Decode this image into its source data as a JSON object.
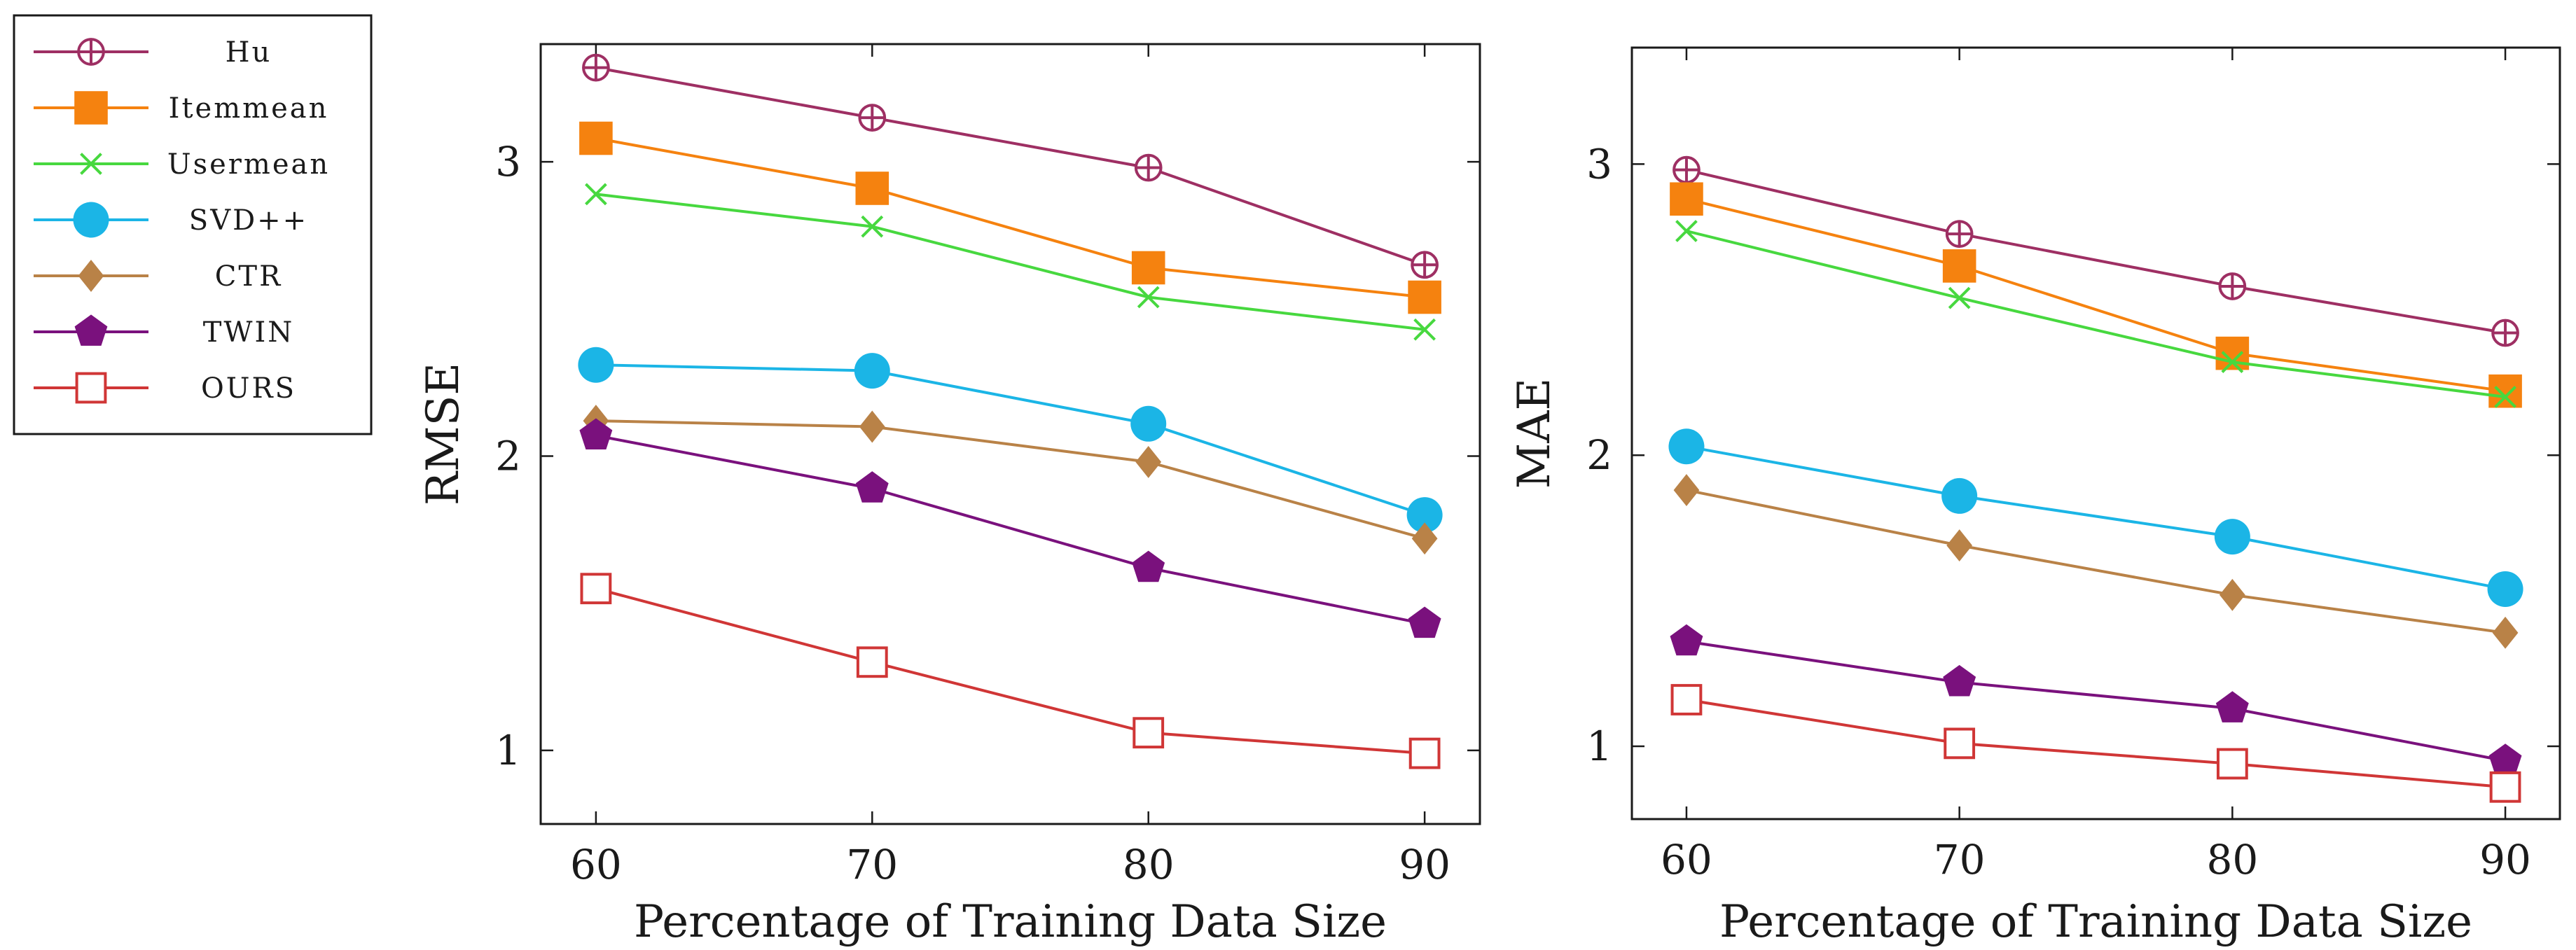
{
  "legend": [
    {
      "name": "Hu",
      "color": "#9e2f63",
      "marker": "circle-plus"
    },
    {
      "name": "Itemmean",
      "color": "#f5820f",
      "marker": "square-filled"
    },
    {
      "name": "Usermean",
      "color": "#47d83f",
      "marker": "cross"
    },
    {
      "name": "SVD++",
      "color": "#1bb5e6",
      "marker": "circle-filled"
    },
    {
      "name": "CTR",
      "color": "#b98247",
      "marker": "diamond"
    },
    {
      "name": "TWIN",
      "color": "#7a117d",
      "marker": "pentagon"
    },
    {
      "name": "OURS",
      "color": "#d03636",
      "marker": "square-open"
    }
  ],
  "chart_data": [
    {
      "type": "line",
      "xlabel": "Percentage of Training Data Size",
      "ylabel": "RMSE",
      "x": [
        60,
        70,
        80,
        90
      ],
      "xlim": [
        58,
        92
      ],
      "ylim": [
        0.75,
        3.4
      ],
      "xticks": [
        60,
        70,
        80,
        90
      ],
      "yticks": [
        1,
        2,
        3
      ],
      "series": [
        {
          "name": "Hu",
          "values": [
            3.32,
            3.15,
            2.98,
            2.65
          ]
        },
        {
          "name": "Itemmean",
          "values": [
            3.08,
            2.91,
            2.64,
            2.54
          ]
        },
        {
          "name": "Usermean",
          "values": [
            2.89,
            2.78,
            2.54,
            2.43
          ]
        },
        {
          "name": "SVD++",
          "values": [
            2.31,
            2.29,
            2.11,
            1.8
          ]
        },
        {
          "name": "CTR",
          "values": [
            2.12,
            2.1,
            1.98,
            1.72
          ]
        },
        {
          "name": "TWIN",
          "values": [
            2.07,
            1.89,
            1.62,
            1.43
          ]
        },
        {
          "name": "OURS",
          "values": [
            1.55,
            1.3,
            1.06,
            0.99
          ]
        }
      ]
    },
    {
      "type": "line",
      "xlabel": "Percentage of Training Data Size",
      "ylabel": "MAE",
      "x": [
        60,
        70,
        80,
        90
      ],
      "xlim": [
        58,
        92
      ],
      "ylim": [
        0.75,
        3.4
      ],
      "xticks": [
        60,
        70,
        80,
        90
      ],
      "yticks": [
        1,
        2,
        3
      ],
      "series": [
        {
          "name": "Hu",
          "values": [
            2.98,
            2.76,
            2.58,
            2.42
          ]
        },
        {
          "name": "Itemmean",
          "values": [
            2.88,
            2.65,
            2.35,
            2.22
          ]
        },
        {
          "name": "Usermean",
          "values": [
            2.77,
            2.54,
            2.32,
            2.2
          ]
        },
        {
          "name": "SVD++",
          "values": [
            2.03,
            1.86,
            1.72,
            1.54
          ]
        },
        {
          "name": "CTR",
          "values": [
            1.88,
            1.69,
            1.52,
            1.39
          ]
        },
        {
          "name": "TWIN",
          "values": [
            1.36,
            1.22,
            1.13,
            0.95
          ]
        },
        {
          "name": "OURS",
          "values": [
            1.16,
            1.01,
            0.94,
            0.86
          ]
        }
      ]
    }
  ]
}
